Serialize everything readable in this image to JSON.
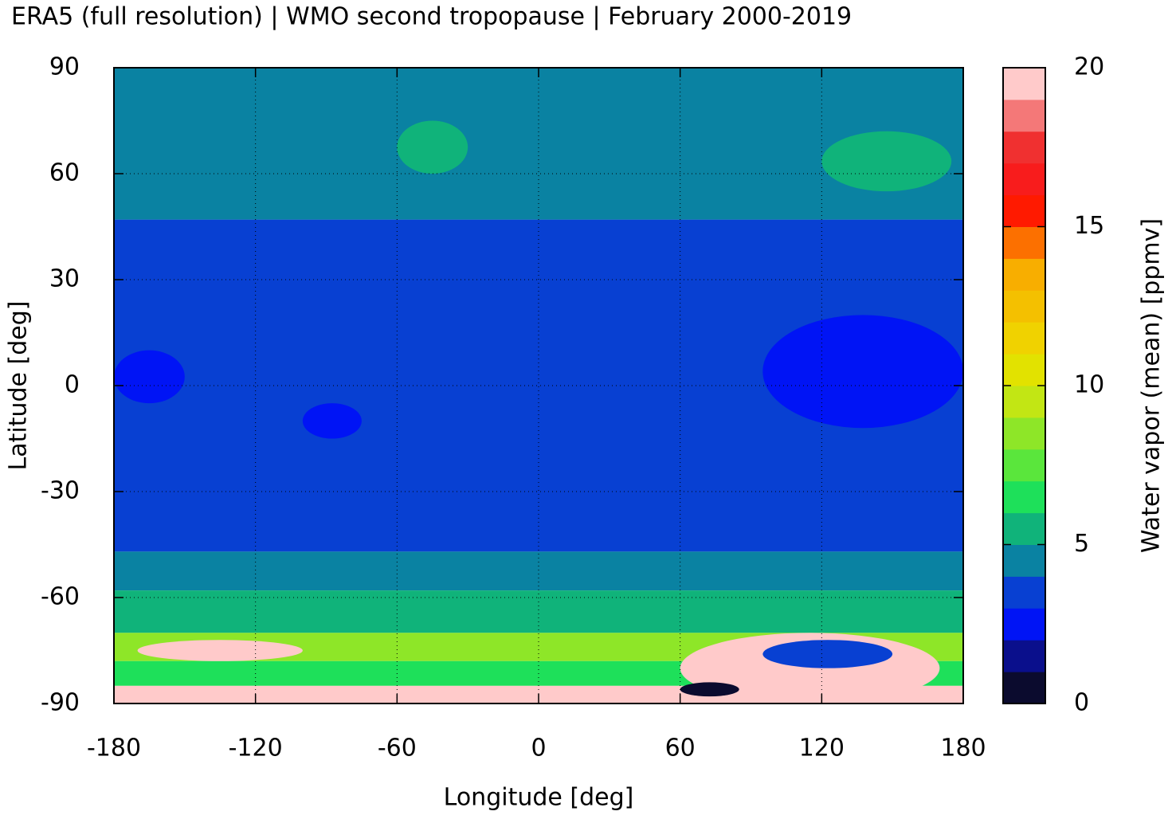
{
  "chart_data": {
    "type": "map",
    "title": "ERA5 (full resolution) | WMO second tropopause | February 2000-2019",
    "x_label": "Longitude [deg]",
    "y_label": "Latitude [deg]",
    "xlim": [
      -180,
      180
    ],
    "xticks": [
      -180,
      -120,
      -60,
      0,
      60,
      120,
      180
    ],
    "ylim": [
      -90,
      90
    ],
    "yticks": [
      -90,
      -60,
      -30,
      0,
      30,
      60,
      90
    ],
    "grid": true,
    "colorbar": {
      "label": "Water vapor (mean) [ppmv]",
      "lim": [
        0,
        20
      ],
      "ticks": [
        0,
        5,
        10,
        15,
        20
      ],
      "colors": [
        "#0b0b2e",
        "#0a0f8c",
        "#0014f5",
        "#0840d2",
        "#0a82a2",
        "#10b37a",
        "#1ee05a",
        "#5ae63c",
        "#8ee628",
        "#c2e614",
        "#e2e200",
        "#f0d200",
        "#f4c000",
        "#f8ae00",
        "#fc7000",
        "#ff1a00",
        "#f81c1c",
        "#f03030",
        "#f47878",
        "#ffcaca"
      ]
    },
    "zonal_bands": [
      {
        "lat": [
          47,
          90
        ],
        "value": 4.5
      },
      {
        "lat": [
          -47,
          47
        ],
        "value": 3.5
      },
      {
        "lat": [
          -58,
          -47
        ],
        "value": 4.5
      },
      {
        "lat": [
          -70,
          -58
        ],
        "value": 5.5
      },
      {
        "lat": [
          -78,
          -70
        ],
        "value": 8
      },
      {
        "lat": [
          -85,
          -78
        ],
        "value": 6.5
      },
      {
        "lat": [
          -90,
          -85
        ],
        "value": 19.5
      }
    ],
    "regions": [
      {
        "lon": [
          95,
          180
        ],
        "lat": [
          -12,
          20
        ],
        "value": 2.5
      },
      {
        "lon": [
          -180,
          -150
        ],
        "lat": [
          -5,
          10
        ],
        "value": 2.5
      },
      {
        "lon": [
          -100,
          -75
        ],
        "lat": [
          -15,
          -5
        ],
        "value": 2.5
      },
      {
        "lon": [
          -170,
          -100
        ],
        "lat": [
          -78,
          -72
        ],
        "value": 19.5
      },
      {
        "lon": [
          60,
          170
        ],
        "lat": [
          -90,
          -70
        ],
        "value": 19.5
      },
      {
        "lon": [
          95,
          150
        ],
        "lat": [
          -80,
          -72
        ],
        "value": 3.5
      },
      {
        "lon": [
          60,
          85
        ],
        "lat": [
          -88,
          -84
        ],
        "value": 0.5
      },
      {
        "lon": [
          120,
          175
        ],
        "lat": [
          55,
          72
        ],
        "value": 5.5
      },
      {
        "lon": [
          -60,
          -30
        ],
        "lat": [
          60,
          75
        ],
        "value": 5.5
      }
    ]
  }
}
